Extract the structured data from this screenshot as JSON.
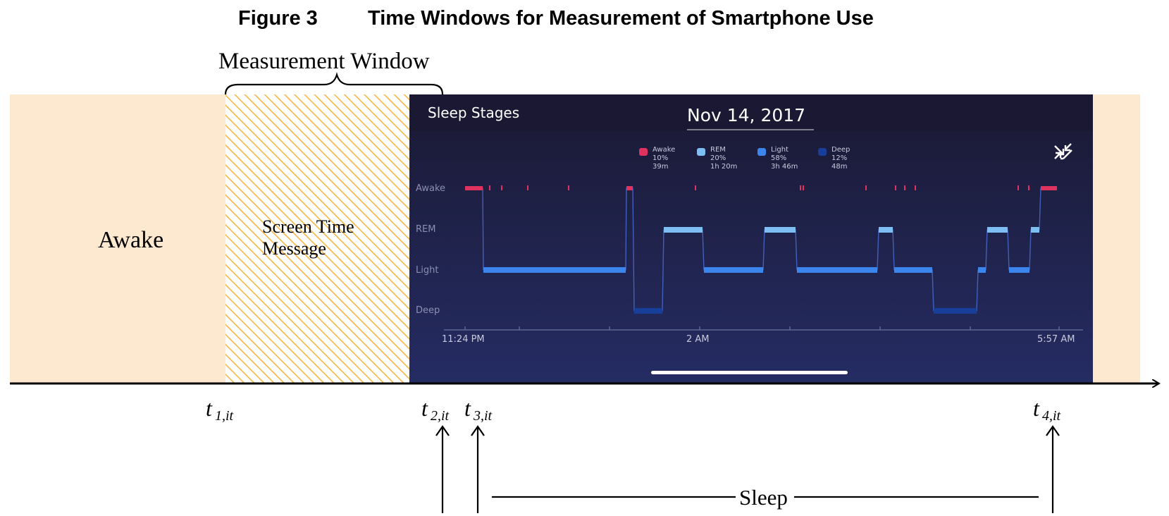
{
  "figure": {
    "label": "Figure 3",
    "title": "Time Windows for Measurement of Smartphone Use"
  },
  "measurement_window_label": "Measurement Window",
  "awake_label": "Awake",
  "screen_time_label_line1": "Screen Time",
  "screen_time_label_line2": "Message",
  "sleep_label": "Sleep",
  "time_markers": {
    "t1": {
      "base": "t",
      "sub": "1,it"
    },
    "t2": {
      "base": "t",
      "sub": "2,it"
    },
    "t3": {
      "base": "t",
      "sub": "3,it"
    },
    "t4": {
      "base": "t",
      "sub": "4,it"
    }
  },
  "colors": {
    "awake_bg": "#fde9cf",
    "hatch": "#f6b743",
    "screen_bg": "#1b1a3a",
    "awake_stage": "#e0325f",
    "rem_stage": "#7ebff3",
    "light_stage": "#3c85ec",
    "deep_stage": "#173f9a"
  },
  "sleep_app": {
    "title": "Sleep Stages",
    "date": "Nov 14, 2017",
    "collapse_icon": "collapse-arrows-icon",
    "legend": [
      {
        "name": "Awake",
        "percent": "10%",
        "duration": "39m",
        "color": "#e0325f"
      },
      {
        "name": "REM",
        "percent": "20%",
        "duration": "1h 20m",
        "color": "#7ebff3"
      },
      {
        "name": "Light",
        "percent": "58%",
        "duration": "3h 46m",
        "color": "#3c85ec"
      },
      {
        "name": "Deep",
        "percent": "12%",
        "duration": "48m",
        "color": "#173f9a"
      }
    ],
    "stage_labels": [
      "Awake",
      "REM",
      "Light",
      "Deep"
    ],
    "x_labels": [
      "11:24 PM",
      "2 AM",
      "5:57 AM"
    ]
  }
}
